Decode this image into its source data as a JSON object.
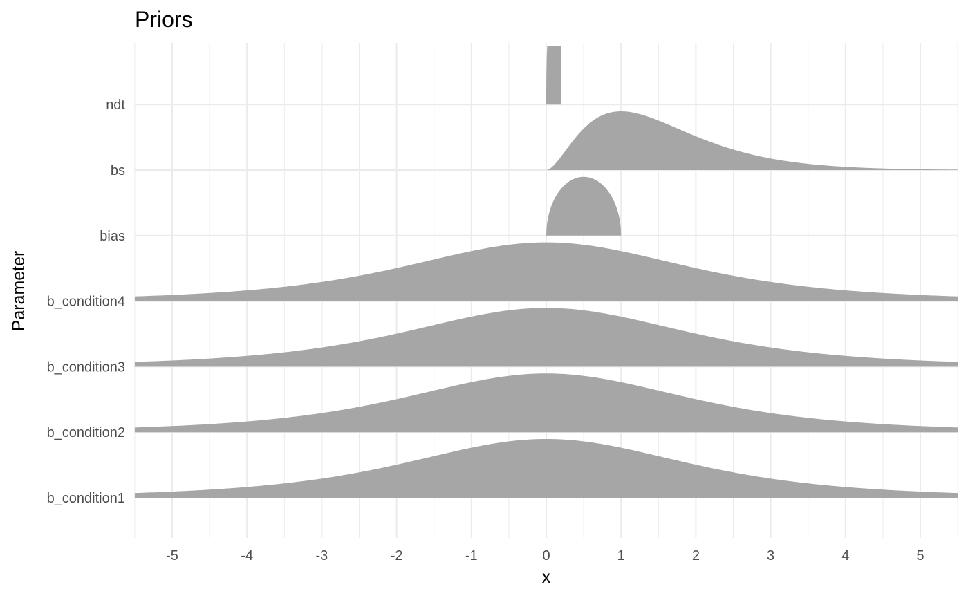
{
  "chart_data": {
    "type": "ridgeline",
    "title": "Priors",
    "xlabel": "x",
    "ylabel": "Parameter",
    "xlim": [
      -5.5,
      5.5
    ],
    "x_ticks": [
      "-5",
      "-4",
      "-3",
      "-2",
      "-1",
      "0",
      "1",
      "2",
      "3",
      "4",
      "5"
    ],
    "grid": true,
    "fill_color": "#a6a6a6",
    "gridline_color": "#ebebeb",
    "series": [
      {
        "name": "b_condition1",
        "shape": "student_t",
        "df": 3,
        "location": 0,
        "scale": 2,
        "support": [
          -5.5,
          5.5
        ]
      },
      {
        "name": "b_condition2",
        "shape": "student_t",
        "df": 3,
        "location": 0,
        "scale": 2,
        "support": [
          -5.5,
          5.5
        ]
      },
      {
        "name": "b_condition3",
        "shape": "student_t",
        "df": 3,
        "location": 0,
        "scale": 2,
        "support": [
          -5.5,
          5.5
        ]
      },
      {
        "name": "b_condition4",
        "shape": "student_t",
        "df": 3,
        "location": 0,
        "scale": 2,
        "support": [
          -5.5,
          5.5
        ]
      },
      {
        "name": "bias",
        "shape": "beta",
        "alpha": 1.5,
        "beta": 1.5,
        "support": [
          0,
          1
        ]
      },
      {
        "name": "bs",
        "shape": "gamma",
        "shape_param": 2.8,
        "rate": 1.8,
        "support": [
          0,
          5.5
        ]
      },
      {
        "name": "ndt",
        "shape": "uniform_edge",
        "support": [
          0,
          0.2
        ]
      }
    ]
  }
}
